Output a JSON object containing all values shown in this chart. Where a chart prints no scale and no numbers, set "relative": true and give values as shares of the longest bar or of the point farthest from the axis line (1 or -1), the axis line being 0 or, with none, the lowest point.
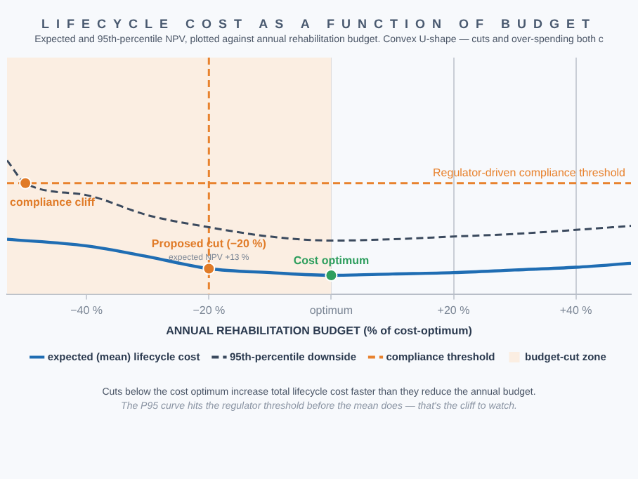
{
  "chart_data": {
    "type": "line",
    "title": "LIFECYCLE COST AS A FUNCTION OF BUDGET",
    "subtitle": "Expected and 95th-percentile NPV, plotted against annual rehabilitation budget. Convex U-shape — cuts and over-spending both c",
    "xlabel": "ANNUAL REHABILITATION BUDGET (% of cost-optimum)",
    "relative": true,
    "xlim": [
      -53,
      49
    ],
    "xticks": [
      {
        "value": -40,
        "label": "−40 %"
      },
      {
        "value": -20,
        "label": "−20 %"
      },
      {
        "value": 0,
        "label": "optimum"
      },
      {
        "value": 20,
        "label": "+20 %"
      },
      {
        "value": 40,
        "label": "+40 %"
      }
    ],
    "grid": "x",
    "legend": "bottom",
    "marker": "none",
    "series": [
      {
        "name": "expected (mean) lifecycle cost",
        "color": "#1f6db3",
        "line_style": "solid",
        "x": [
          -53,
          -40,
          -30,
          -20,
          -10,
          0,
          10,
          20,
          30,
          40,
          49
        ],
        "values": [
          0.41,
          0.36,
          0.28,
          0.19,
          0.16,
          0.14,
          0.15,
          0.16,
          0.18,
          0.2,
          0.23
        ]
      },
      {
        "name": "95th-percentile downside",
        "color": "#3b4a5e",
        "line_style": "dashed",
        "x": [
          -53,
          -50,
          -40,
          -30,
          -20,
          -10,
          0,
          10,
          20,
          30,
          40,
          49
        ],
        "values": [
          1.0,
          0.83,
          0.74,
          0.59,
          0.5,
          0.43,
          0.4,
          0.41,
          0.43,
          0.45,
          0.48,
          0.51
        ]
      },
      {
        "name": "compliance threshold",
        "type": "line",
        "color": "#e8822e",
        "line_style": "dashed",
        "x": [
          -53,
          49
        ],
        "values": [
          0.83,
          0.83
        ]
      },
      {
        "type": "scatter",
        "marker": "circle",
        "x": [
          -50,
          -20,
          0
        ],
        "values": [
          0.83,
          0.19,
          0.14
        ],
        "colors": [
          "#e07b28",
          "#e07b28",
          "#2e9e5e"
        ]
      }
    ],
    "bands": [
      {
        "axis": "x",
        "from": -53,
        "to": 0,
        "label": "budget-cut zone",
        "color": "#fbeee2"
      }
    ],
    "ref_lines": [
      {
        "axis": "x",
        "value": -20,
        "color": "#e8822e",
        "line_style": "dashed"
      }
    ],
    "annotations": [
      {
        "text": "compliance cliff",
        "x": -50,
        "y": 0.83
      },
      {
        "text": "Proposed cut (−20 %)",
        "x": -20,
        "y": 0.19
      },
      {
        "text": "expected NPV +13 %",
        "x": -20,
        "y": 0.19
      },
      {
        "text": "Cost optimum",
        "x": 0,
        "y": 0.14
      },
      {
        "text": "Regulator-driven compliance threshold",
        "y": 0.83
      },
      "Cuts below the cost optimum increase total lifecycle cost faster than they reduce the annual budget.",
      "The P95 curve hits the regulator threshold before the mean does — that's the cliff to watch."
    ]
  }
}
